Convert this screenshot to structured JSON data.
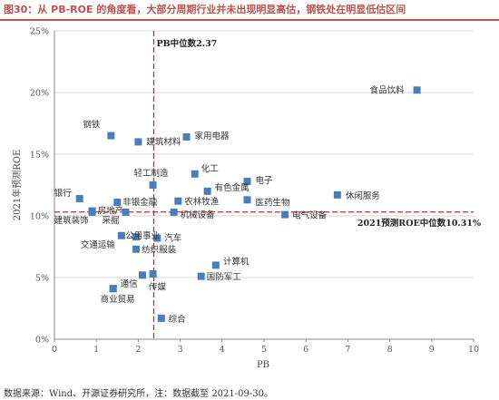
{
  "figure": {
    "title": "图30：从 PB-ROE 的角度看，大部分周期行业并未出现明显高估，钢铁处在明显低估区间",
    "source": "数据来源：Wind、开源证券研究所，注：数据截至 2021-09-30。"
  },
  "colors": {
    "marker": "#4a7ebb",
    "reference_line": "#d62728",
    "grid": "#d9d9d9",
    "axis": "#888888"
  },
  "chart_data": {
    "type": "scatter",
    "title": "",
    "xlabel": "PB",
    "ylabel": "2021年预测ROE",
    "xlim": [
      0,
      10
    ],
    "ylim": [
      0,
      25
    ],
    "x_ticks": [
      "0",
      "1",
      "2",
      "3",
      "4",
      "5",
      "6",
      "7",
      "8",
      "9",
      "10"
    ],
    "y_ticks": [
      "0%",
      "5%",
      "10%",
      "15%",
      "20%",
      "25%"
    ],
    "grid": "horizontal",
    "legend": "none",
    "points": [
      {
        "label": "食品饮料",
        "x": 8.65,
        "y": 20.2
      },
      {
        "label": "钢铁",
        "x": 1.35,
        "y": 16.5
      },
      {
        "label": "建筑材料",
        "x": 2.0,
        "y": 16.0
      },
      {
        "label": "家用电器",
        "x": 3.15,
        "y": 16.4
      },
      {
        "label": "化工",
        "x": 3.35,
        "y": 13.4
      },
      {
        "label": "轻工制造",
        "x": 2.35,
        "y": 12.5
      },
      {
        "label": "电子",
        "x": 4.6,
        "y": 12.8
      },
      {
        "label": "有色金属",
        "x": 3.65,
        "y": 12.0
      },
      {
        "label": "休闲服务",
        "x": 6.75,
        "y": 11.7
      },
      {
        "label": "银行",
        "x": 0.6,
        "y": 11.4
      },
      {
        "label": "非银金融",
        "x": 1.5,
        "y": 11.1
      },
      {
        "label": "农林牧渔",
        "x": 2.95,
        "y": 11.2
      },
      {
        "label": "医药生物",
        "x": 4.6,
        "y": 11.3
      },
      {
        "label": "房地产",
        "x": 0.9,
        "y": 10.4
      },
      {
        "label": "采掘",
        "x": 1.7,
        "y": 10.3
      },
      {
        "label": "机械设备",
        "x": 2.85,
        "y": 10.3
      },
      {
        "label": "电气设备",
        "x": 5.5,
        "y": 10.1
      },
      {
        "label": "建筑装饰",
        "x": 0.9,
        "y": 10.3
      },
      {
        "label": "公用事业",
        "x": 1.95,
        "y": 8.3
      },
      {
        "label": "交通运输",
        "x": 1.6,
        "y": 8.4
      },
      {
        "label": "汽车",
        "x": 2.45,
        "y": 8.2
      },
      {
        "label": "纺织服装",
        "x": 1.95,
        "y": 7.3
      },
      {
        "label": "计算机",
        "x": 3.85,
        "y": 6.0
      },
      {
        "label": "国防军工",
        "x": 3.5,
        "y": 5.1
      },
      {
        "label": "传媒",
        "x": 2.1,
        "y": 5.2
      },
      {
        "label": "传媒",
        "x": 2.35,
        "y": 5.3
      },
      {
        "label": "通信",
        "x": 1.4,
        "y": 4.1
      },
      {
        "label": "商业贸易",
        "x": 1.4,
        "y": 4.1
      },
      {
        "label": "综合",
        "x": 2.55,
        "y": 1.7
      }
    ],
    "reference_lines": [
      {
        "axis": "x",
        "value": 2.37,
        "label": "PB中位数2.37"
      },
      {
        "axis": "y",
        "value": 10.31,
        "label": "2021预测ROE中位数10.31%"
      }
    ]
  }
}
